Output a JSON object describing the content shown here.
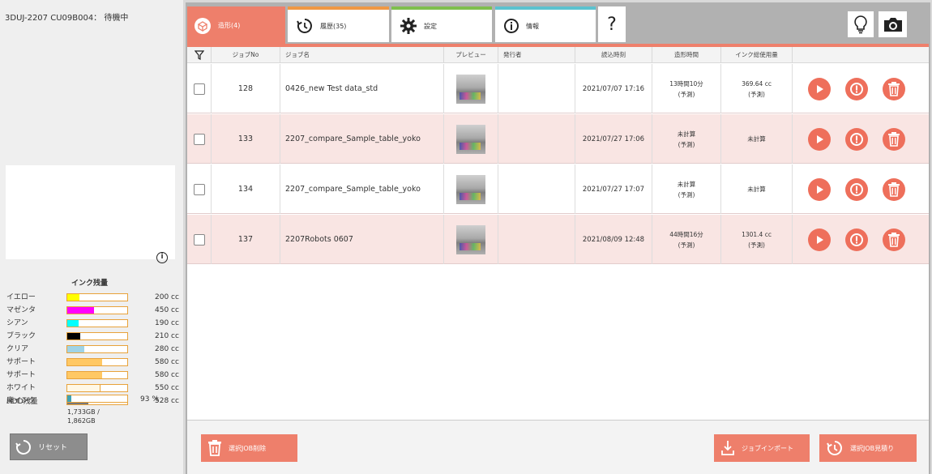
{
  "printer": {
    "status": "3DUJ-2207 CU09B004： 待機中"
  },
  "ink": {
    "title": "インク残量",
    "info_icon": "info-circle-icon",
    "items": [
      {
        "name": "イエロー",
        "amount": "200 cc",
        "level": 0.2,
        "color": "#ffff00"
      },
      {
        "name": "マゼンタ",
        "amount": "450 cc",
        "level": 0.45,
        "color": "#ff00ff"
      },
      {
        "name": "シアン",
        "amount": "190 cc",
        "level": 0.19,
        "color": "#00ffff"
      },
      {
        "name": "ブラック",
        "amount": "210 cc",
        "level": 0.21,
        "color": "#000000"
      },
      {
        "name": "クリア",
        "amount": "280 cc",
        "level": 0.28,
        "color": "#9fd3e6"
      },
      {
        "name": "サポート",
        "amount": "580 cc",
        "level": 0.58,
        "color": "#ffc864"
      },
      {
        "name": "サポート",
        "amount": "580 cc",
        "level": 0.58,
        "color": "#ffc864"
      },
      {
        "name": "ホワイト",
        "amount": "550 cc",
        "level": 0.55,
        "color": "#fff8e6"
      },
      {
        "name": "廃インク",
        "amount": "528 cc",
        "level": 0.35,
        "color": "#777777"
      }
    ]
  },
  "hdd": {
    "label": "HDD残量",
    "percent": "93 %",
    "used_line1": "1,733GB /",
    "used_line2": "1,862GB",
    "level": 0.07
  },
  "reset_label": "リセット",
  "tabs": [
    {
      "label": "造形(4)",
      "icon": "job-box-icon"
    },
    {
      "label": "履歴(35)",
      "icon": "history-icon"
    },
    {
      "label": "設定",
      "icon": "gear-icon"
    },
    {
      "label": "情報",
      "icon": "info-icon"
    },
    {
      "label": "?",
      "icon": "help-icon"
    }
  ],
  "toolbar_icons": [
    "lightbulb-icon",
    "camera-icon"
  ],
  "table": {
    "columns": [
      "ジョブNo",
      "ジョブ名",
      "プレビュー",
      "発行者",
      "読込時刻",
      "造形時間",
      "インク総使用量"
    ],
    "rows": [
      {
        "no": "128",
        "name": "0426_new Test data_std",
        "issuer": "",
        "time": "2021/07/07 17:16",
        "duration": "13時間10分",
        "duration_note": "(予測)",
        "ink": "369.64 cc",
        "ink_note": "(予測)"
      },
      {
        "no": "133",
        "name": "2207_compare_Sample_table_yoko",
        "issuer": "",
        "time": "2021/07/27 17:06",
        "duration": "未計算",
        "duration_note": "(予測)",
        "ink": "未計算",
        "ink_note": ""
      },
      {
        "no": "134",
        "name": "2207_compare_Sample_table_yoko",
        "issuer": "",
        "time": "2021/07/27 17:07",
        "duration": "未計算",
        "duration_note": "(予測)",
        "ink": "未計算",
        "ink_note": ""
      },
      {
        "no": "137",
        "name": "2207Robots 0607",
        "issuer": "",
        "time": "2021/08/09 12:48",
        "duration": "44時間16分",
        "duration_note": "(予測)",
        "ink": "1301.4 cc",
        "ink_note": "(予測)"
      }
    ]
  },
  "bottom": {
    "delete_label": "選択JOB削除",
    "import_label": "ジョブインポート",
    "estimate_label": "選択JOB見積り"
  }
}
